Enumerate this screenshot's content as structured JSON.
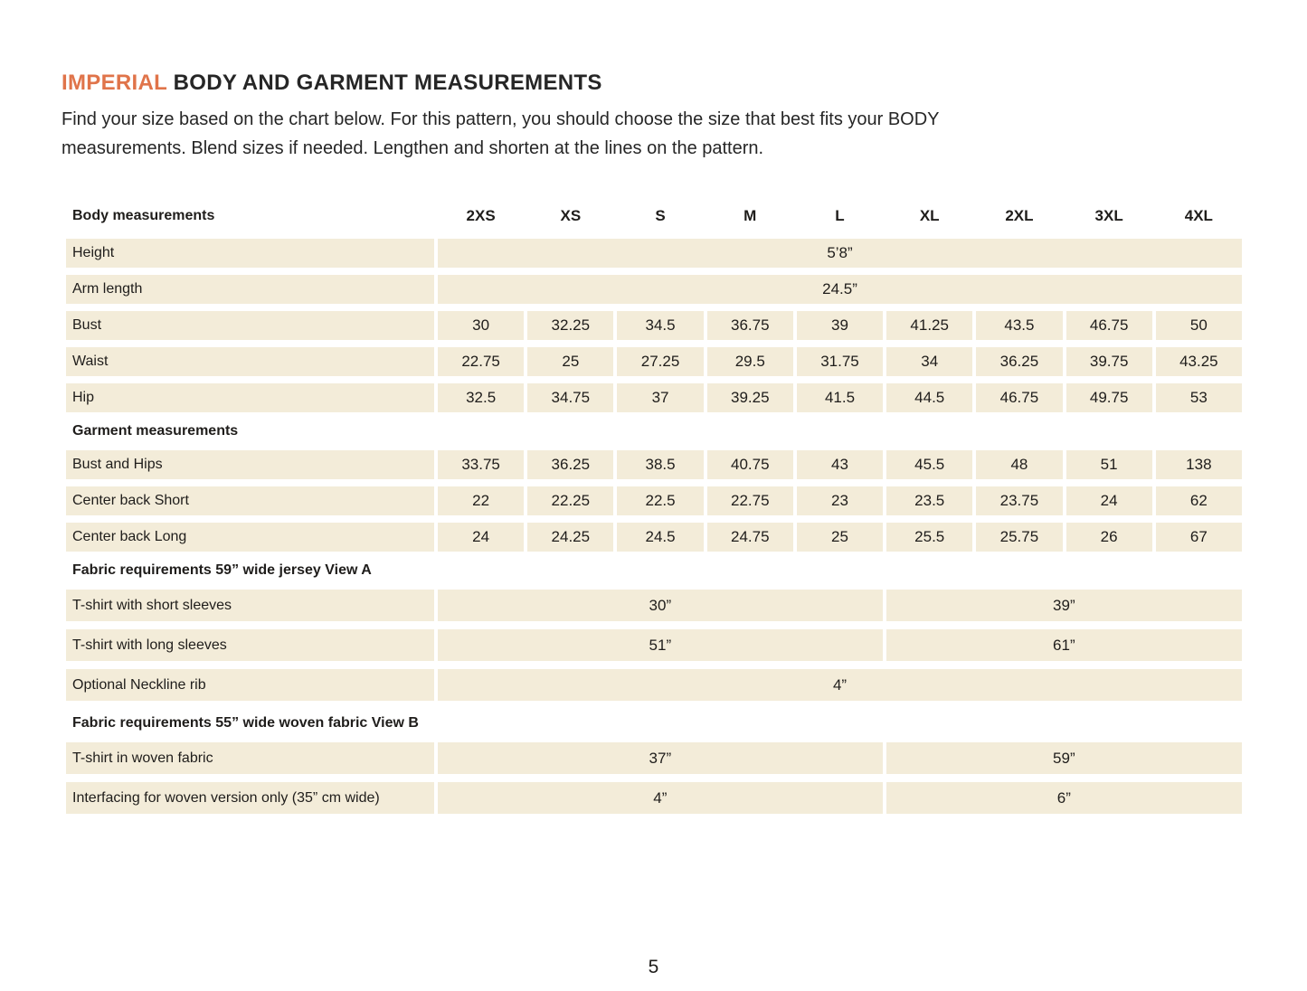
{
  "header": {
    "title_highlight": "IMPERIAL",
    "title_rest": " BODY AND GARMENT MEASUREMENTS",
    "intro_line1": "Find your size based on the chart below. For this pattern, you should choose the size that best fits your BODY",
    "intro_line2": "measurements. Blend sizes if needed. Lengthen and shorten at the lines on the pattern."
  },
  "colors": {
    "accent_orange": "#e0744a",
    "cell_background": "#f3ecd9",
    "text": "#1f1d1b"
  },
  "table": {
    "header_label": "Body measurements",
    "sizes": [
      "2XS",
      "XS",
      "S",
      "M",
      "L",
      "XL",
      "2XL",
      "3XL",
      "4XL"
    ],
    "height": {
      "label": "Height",
      "value": "5’8”"
    },
    "arm_length": {
      "label": "Arm length",
      "value": "24.5”"
    },
    "bust": {
      "label": "Bust",
      "values": [
        "30",
        "32.25",
        "34.5",
        "36.75",
        "39",
        "41.25",
        "43.5",
        "46.75",
        "50"
      ]
    },
    "waist": {
      "label": "Waist",
      "values": [
        "22.75",
        "25",
        "27.25",
        "29.5",
        "31.75",
        "34",
        "36.25",
        "39.75",
        "43.25"
      ]
    },
    "hip": {
      "label": "Hip",
      "values": [
        "32.5",
        "34.75",
        "37",
        "39.25",
        "41.5",
        "44.5",
        "46.75",
        "49.75",
        "53"
      ]
    },
    "garment_section": "Garment measurements",
    "bust_and_hips": {
      "label": "Bust and Hips",
      "values": [
        "33.75",
        "36.25",
        "38.5",
        "40.75",
        "43",
        "45.5",
        "48",
        "51",
        "138"
      ]
    },
    "center_back_short": {
      "label": "Center back Short",
      "values": [
        "22",
        "22.25",
        "22.5",
        "22.75",
        "23",
        "23.5",
        "23.75",
        "24",
        "62"
      ]
    },
    "center_back_long": {
      "label": "Center back Long",
      "values": [
        "24",
        "24.25",
        "24.5",
        "24.75",
        "25",
        "25.5",
        "25.75",
        "26",
        "67"
      ]
    },
    "fabric_a_section": "Fabric requirements 59” wide jersey View A",
    "tshirt_short_sleeves": {
      "label": "T-shirt with short sleeves",
      "left": "30”",
      "right": "39”"
    },
    "tshirt_long_sleeves": {
      "label": "T-shirt with long sleeves",
      "left": "51”",
      "right": "61”"
    },
    "neckline_rib": {
      "label": "Optional Neckline rib",
      "value": "4”"
    },
    "fabric_b_section": "Fabric requirements 55”  wide woven fabric View B",
    "tshirt_woven": {
      "label": "T-shirt in woven fabric",
      "left": "37”",
      "right": "59”"
    },
    "interfacing": {
      "label": "Interfacing for woven version only (35” cm wide)",
      "left": "4”",
      "right": "6”"
    }
  },
  "footer": {
    "page_number": "5"
  }
}
